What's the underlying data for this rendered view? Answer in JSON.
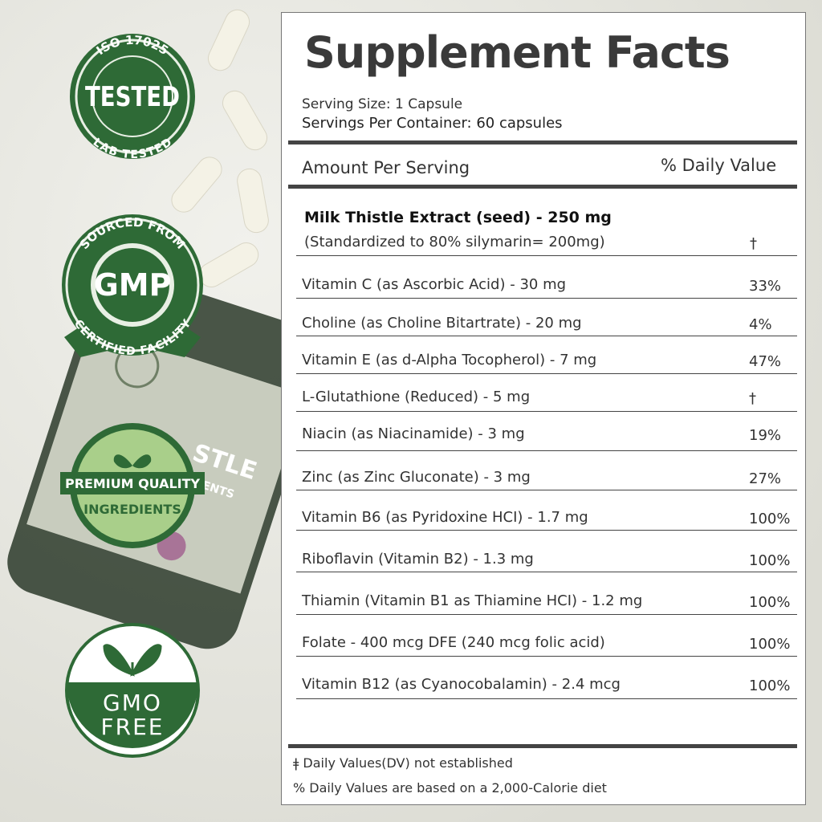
{
  "badges": [
    {
      "top": "ISO 17025",
      "center": "TESTED",
      "bottom": "LAB TESTED"
    },
    {
      "top": "SOURCED FROM",
      "center": "GMP",
      "bottom": "CERTIFIED FACILITY"
    },
    {
      "lines": [
        "PREMIUM QUALITY",
        "INGREDIENTS"
      ]
    },
    {
      "lines": [
        "GMO",
        "FREE"
      ]
    }
  ],
  "bottle": {
    "label": "STLE",
    "sublabel": "EMENTS"
  },
  "facts": {
    "title": "Supplement Facts",
    "serving_size": "Serving Size: 1 Capsule",
    "servings_per_container": "Servings Per Container: 60 capsules",
    "amount_header": "Amount Per Serving",
    "dv_header": "% Daily Value",
    "main": {
      "name": "Milk Thistle Extract (seed) - 250 mg",
      "note": "(Standardized to 80% silymarin= 200mg)",
      "dv": "†"
    },
    "rows": [
      [
        "Vitamin C (as Ascorbic Acid) - 30 mg",
        "33%"
      ],
      [
        "Choline (as Choline Bitartrate) - 20 mg",
        "4%"
      ],
      [
        "Vitamin E (as d-Alpha Tocopherol) - 7 mg",
        "47%"
      ],
      [
        "L-Glutathione (Reduced) - 5 mg",
        "†"
      ],
      [
        "Niacin (as Niacinamide) - 3 mg",
        "19%"
      ],
      [
        "Zinc (as Zinc Gluconate) - 3 mg",
        "27%"
      ],
      [
        "Vitamin B6 (as Pyridoxine HCI) - 1.7 mg",
        "100%"
      ],
      [
        "Riboflavin (Vitamin B2) - 1.3 mg",
        "100%"
      ],
      [
        "Thiamin (Vitamin B1 as Thiamine HCI) - 1.2 mg",
        "100%"
      ],
      [
        "Folate - 400 mcg DFE (240 mcg folic acid)",
        "100%"
      ],
      [
        "Vitamin B12 (as Cyanocobalamin) - 2.4 mcg",
        "100%"
      ]
    ],
    "footnotes": [
      "ǂ Daily Values(DV) not established",
      "% Daily Values are based on a 2,000-Calorie diet"
    ]
  }
}
